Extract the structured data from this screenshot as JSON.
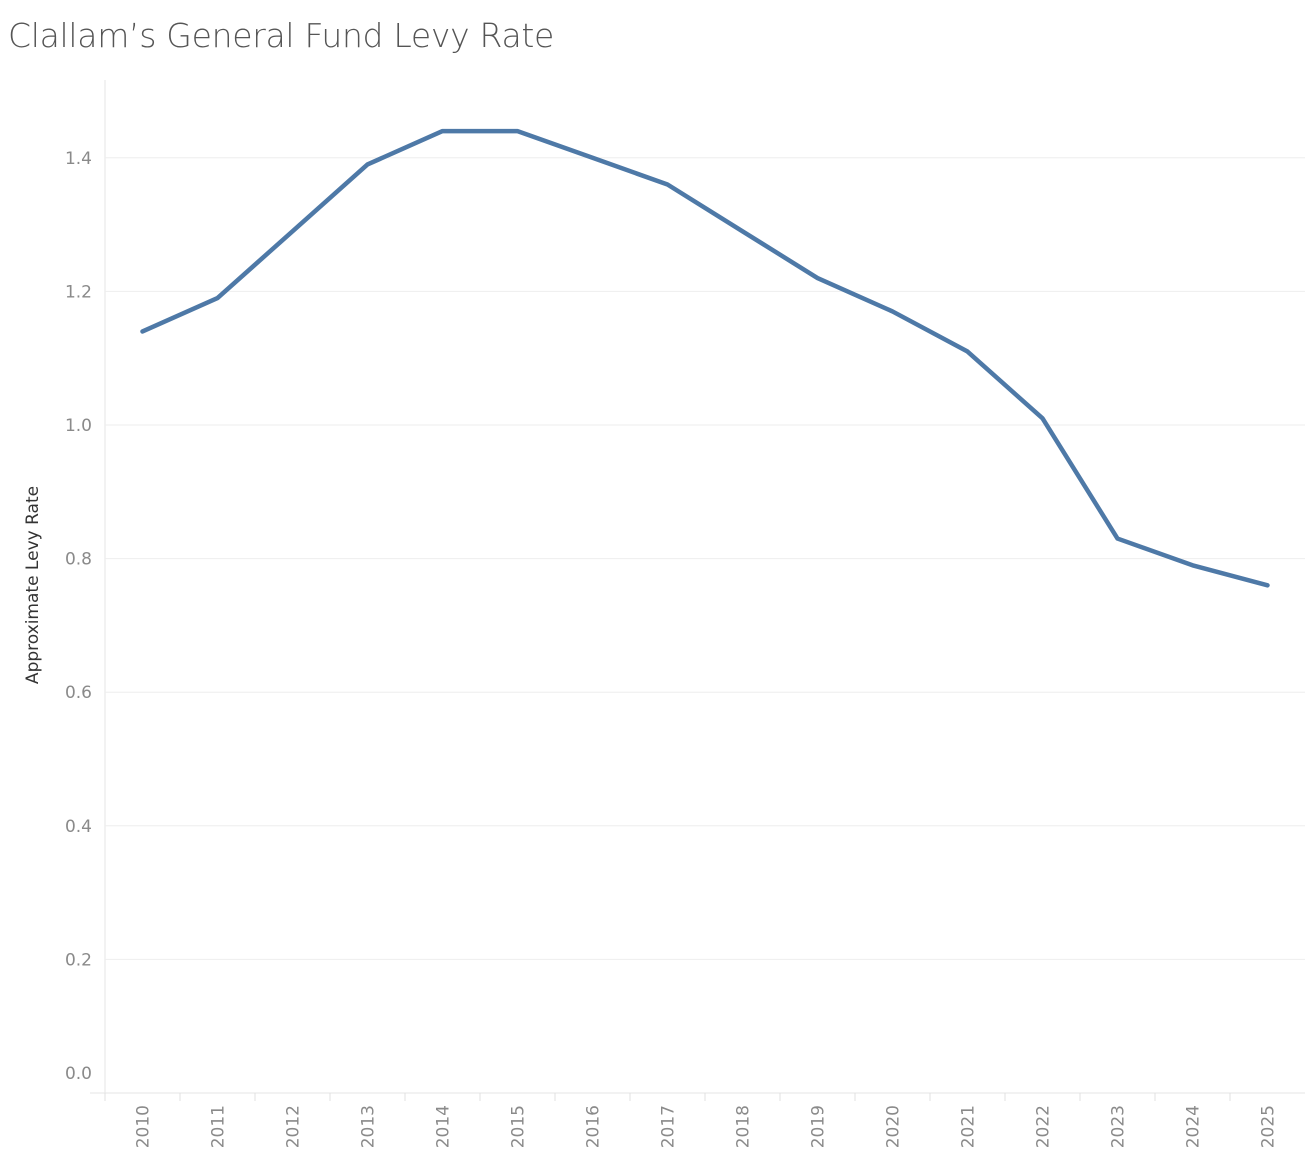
{
  "chart_data": {
    "type": "line",
    "title": "Clallam’s General Fund Levy Rate",
    "xlabel": "",
    "ylabel": "Approximate Levy Rate",
    "categories": [
      "2010",
      "2011",
      "2012",
      "2013",
      "2014",
      "2015",
      "2016",
      "2017",
      "2018",
      "2019",
      "2020",
      "2021",
      "2022",
      "2023",
      "2024",
      "2025"
    ],
    "values": [
      1.14,
      1.19,
      1.29,
      1.39,
      1.44,
      1.44,
      1.4,
      1.36,
      1.29,
      1.22,
      1.17,
      1.11,
      1.01,
      0.83,
      0.79,
      0.76
    ],
    "yticks": [
      "0.0",
      "0.2",
      "0.4",
      "0.6",
      "0.8",
      "1.0",
      "1.2",
      "1.4"
    ],
    "ylim": [
      0,
      1.52
    ],
    "grid": true,
    "line_color": "#4e79a7"
  }
}
